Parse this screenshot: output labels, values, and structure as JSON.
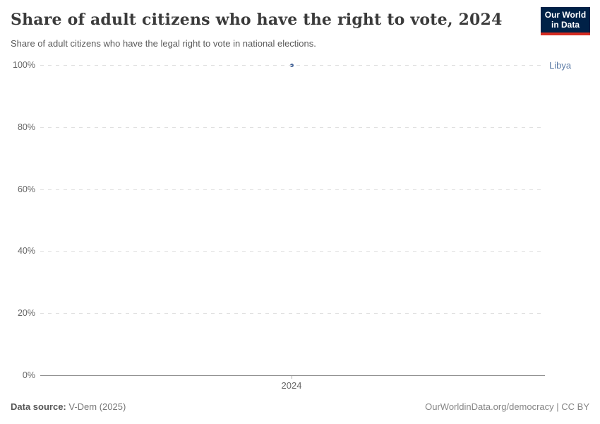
{
  "header": {
    "title": "Share of adult citizens who have the right to vote, 2024",
    "subtitle": "Share of adult citizens who have the legal right to vote in national elections.",
    "logo": {
      "line1": "Our World",
      "line2": "in Data",
      "bg_color": "#002147",
      "stripe_color": "#d42b21"
    }
  },
  "chart_data": {
    "type": "scatter",
    "title": "Share of adult citizens who have the right to vote, 2024",
    "subtitle": "Share of adult citizens who have the legal right to vote in national elections.",
    "series": [
      {
        "name": "Libya",
        "x": [
          2024
        ],
        "y": [
          100
        ]
      }
    ],
    "x_ticks": [
      "2024"
    ],
    "y_ticks": [
      "100%",
      "80%",
      "60%",
      "40%",
      "20%",
      "0%"
    ],
    "y_tick_values": [
      100,
      80,
      60,
      40,
      20,
      0
    ],
    "ylim": [
      0,
      100
    ],
    "grid": "horizontal dashed",
    "legend_position": "right-of-plot entity label",
    "point_color": "#4c6a9c",
    "entity_label_color": "#5b7ba6"
  },
  "footer": {
    "source_label": "Data source:",
    "source_value": " V-Dem (2025)",
    "right_text": "OurWorldinData.org/democracy | CC BY"
  }
}
